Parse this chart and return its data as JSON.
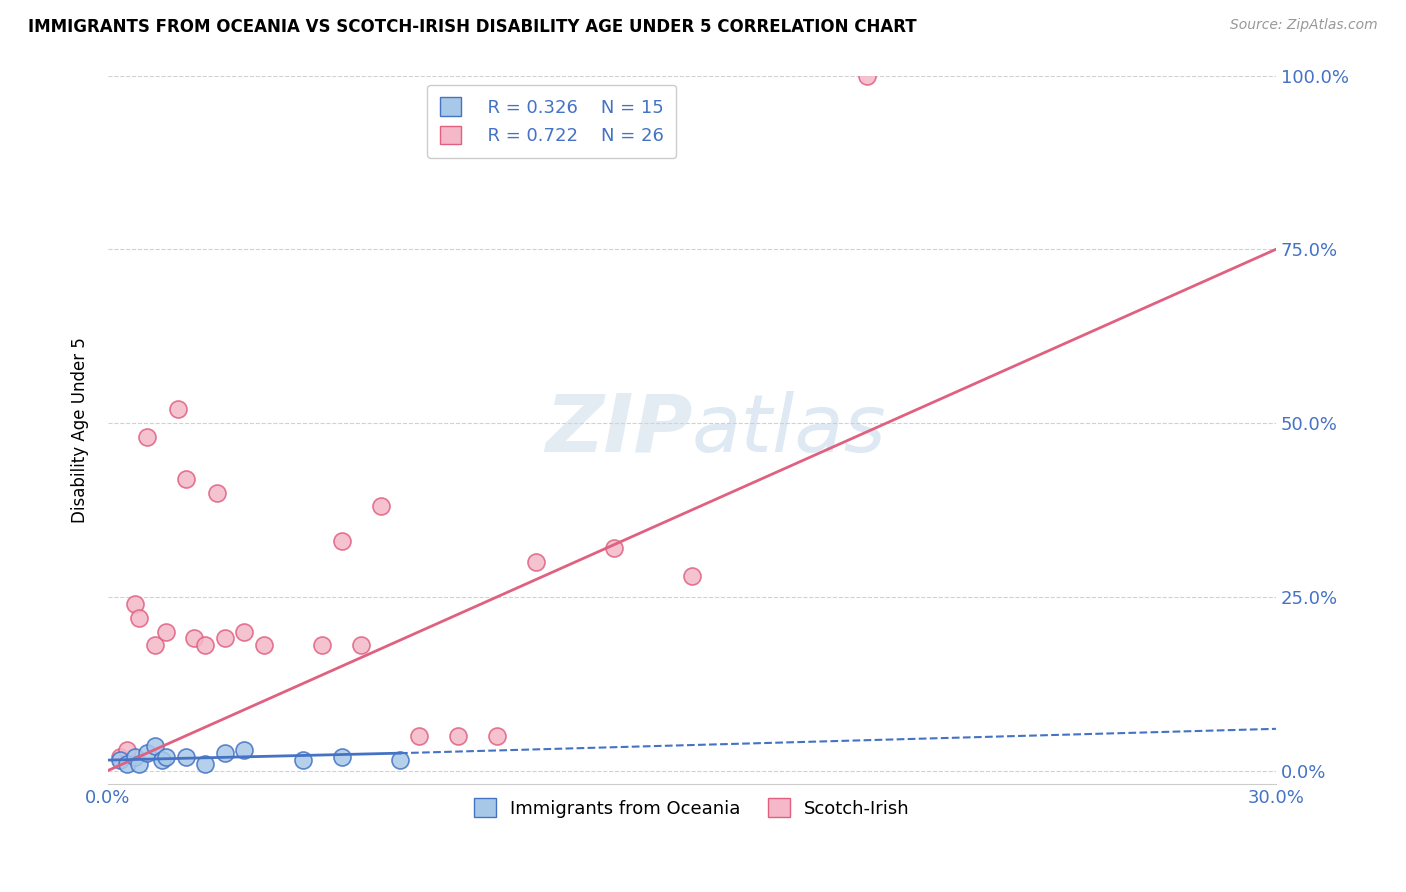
{
  "title": "IMMIGRANTS FROM OCEANIA VS SCOTCH-IRISH DISABILITY AGE UNDER 5 CORRELATION CHART",
  "source_text": "Source: ZipAtlas.com",
  "ylabel": "Disability Age Under 5",
  "legend_label_blue": "Immigrants from Oceania",
  "legend_label_pink": "Scotch-Irish",
  "legend_r_blue": "R = 0.326",
  "legend_n_blue": "N = 15",
  "legend_r_pink": "R = 0.722",
  "legend_n_pink": "N = 26",
  "blue_scatter_color": "#a8c8e8",
  "blue_edge_color": "#4472C4",
  "pink_scatter_color": "#f4b8c8",
  "pink_edge_color": "#e06080",
  "blue_line_color": "#4472C4",
  "pink_line_color": "#e06080",
  "text_color": "#4472C4",
  "watermark_color": "#c8d8e8",
  "grid_color": "#cccccc",
  "blue_scatter_x": [
    0.3,
    0.5,
    0.7,
    0.8,
    1.0,
    1.2,
    1.4,
    1.5,
    2.0,
    2.5,
    3.0,
    3.5,
    5.0,
    6.0,
    7.5
  ],
  "blue_scatter_y": [
    1.5,
    1.0,
    2.0,
    1.0,
    2.5,
    3.5,
    1.5,
    2.0,
    2.0,
    1.0,
    2.5,
    3.0,
    1.5,
    2.0,
    1.5
  ],
  "pink_scatter_x": [
    0.3,
    0.5,
    0.7,
    0.8,
    1.0,
    1.2,
    1.5,
    1.8,
    2.0,
    2.2,
    2.5,
    2.8,
    3.0,
    3.5,
    4.0,
    5.5,
    6.0,
    6.5,
    7.0,
    8.0,
    9.0,
    10.0,
    11.0,
    13.0,
    15.0,
    19.5
  ],
  "pink_scatter_y": [
    2.0,
    3.0,
    24.0,
    22.0,
    48.0,
    18.0,
    20.0,
    52.0,
    42.0,
    19.0,
    18.0,
    40.0,
    19.0,
    20.0,
    18.0,
    18.0,
    33.0,
    18.0,
    38.0,
    5.0,
    5.0,
    5.0,
    30.0,
    32.0,
    28.0,
    100.0
  ],
  "xmax": 30.0,
  "ymax": 100.0,
  "xmin": 0.0,
  "ymin": -2.0,
  "pink_line_x0": 0.0,
  "pink_line_y0": 0.0,
  "pink_line_x1": 30.0,
  "pink_line_y1": 75.0,
  "blue_line_x0": 0.0,
  "blue_line_y0": 1.5,
  "blue_line_x1": 7.5,
  "blue_line_y1": 2.5,
  "blue_dash_x0": 7.5,
  "blue_dash_y0": 2.5,
  "blue_dash_x1": 30.0,
  "blue_dash_y1": 6.0
}
